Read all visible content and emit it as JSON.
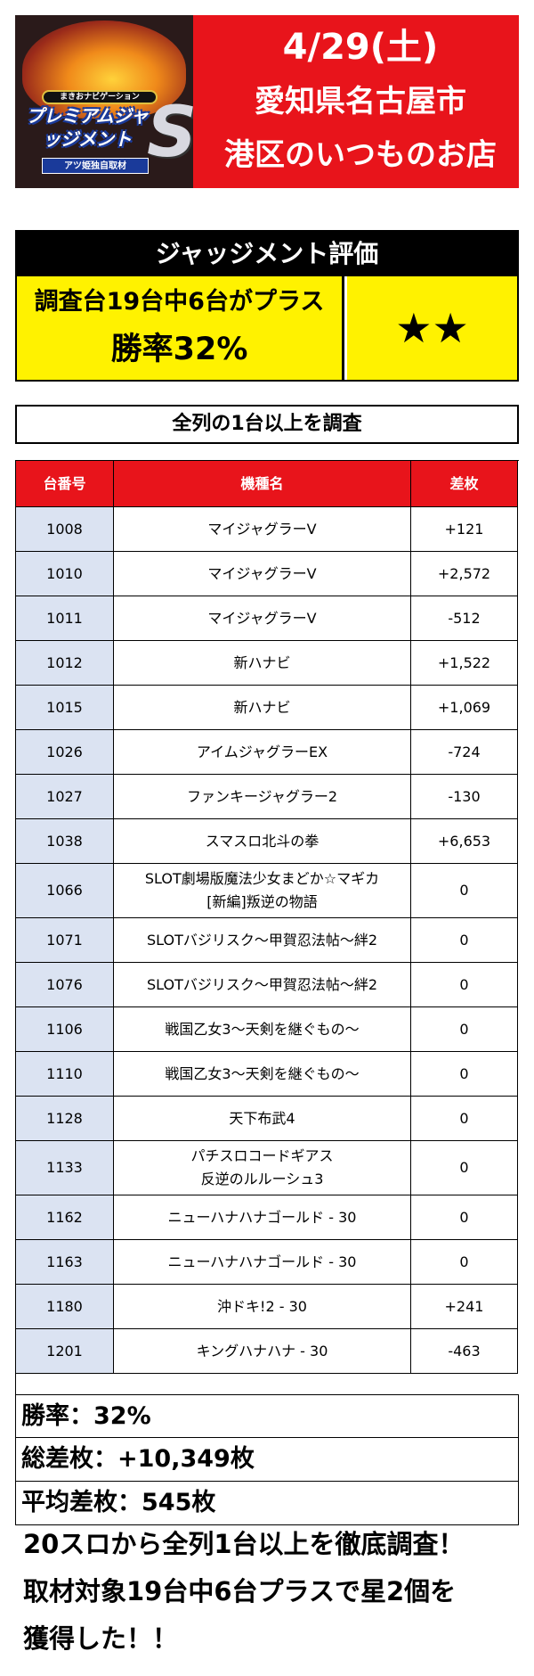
{
  "header": {
    "logo": {
      "top_text": "まきおナビゲーション",
      "main_text": "プレミアムジャッジメント",
      "s_mark": "S",
      "bottom_text": "アツ姫独自取材"
    },
    "date": "4/29(土)",
    "city": "愛知県名古屋市",
    "store": "港区のいつものお店"
  },
  "evaluation": {
    "title": "ジャッジメント評価",
    "line1": "調査台19台中6台がプラス",
    "line2": "勝率32%",
    "stars": "★★"
  },
  "survey_label": "全列の1台以上を調査",
  "table": {
    "headers": [
      "台番号",
      "機種名",
      "差枚"
    ],
    "rows": [
      {
        "no": "1008",
        "name": "マイジャグラーV",
        "diff": "+121"
      },
      {
        "no": "1010",
        "name": "マイジャグラーV",
        "diff": "+2,572"
      },
      {
        "no": "1011",
        "name": "マイジャグラーV",
        "diff": "-512"
      },
      {
        "no": "1012",
        "name": "新ハナビ",
        "diff": "+1,522"
      },
      {
        "no": "1015",
        "name": "新ハナビ",
        "diff": "+1,069"
      },
      {
        "no": "1026",
        "name": "アイムジャグラーEX",
        "diff": "-724"
      },
      {
        "no": "1027",
        "name": "ファンキージャグラー2",
        "diff": "-130"
      },
      {
        "no": "1038",
        "name": "スマスロ北斗の拳",
        "diff": "+6,653"
      },
      {
        "no": "1066",
        "name": "SLOT劇場版魔法少女まどか☆マギカ",
        "name2": "[新編]叛逆の物語",
        "diff": "0"
      },
      {
        "no": "1071",
        "name": "SLOTバジリスク～甲賀忍法帖～絆2",
        "diff": "0"
      },
      {
        "no": "1076",
        "name": "SLOTバジリスク～甲賀忍法帖～絆2",
        "diff": "0"
      },
      {
        "no": "1106",
        "name": "戦国乙女3～天剣を継ぐもの～",
        "diff": "0"
      },
      {
        "no": "1110",
        "name": "戦国乙女3～天剣を継ぐもの～",
        "diff": "0"
      },
      {
        "no": "1128",
        "name": "天下布武4",
        "diff": "0"
      },
      {
        "no": "1133",
        "name": "パチスロコードギアス",
        "name2": "反逆のルルーシュ3",
        "diff": "0"
      },
      {
        "no": "1162",
        "name": "ニューハナハナゴールド - 30",
        "diff": "0"
      },
      {
        "no": "1163",
        "name": "ニューハナハナゴールド - 30",
        "diff": "0"
      },
      {
        "no": "1180",
        "name": "沖ドキ!2 - 30",
        "diff": "+241"
      },
      {
        "no": "1201",
        "name": "キングハナハナ - 30",
        "diff": "-463"
      }
    ]
  },
  "stats": {
    "win_rate": "勝率：32%",
    "total": "総差枚：+10,349枚",
    "average": "平均差枚：545枚"
  },
  "closing": {
    "line1": "20スロから全列1台以上を徹底調査！",
    "line2": "取材対象19台中6台プラスで星2個を",
    "line3": "獲得した！！"
  }
}
